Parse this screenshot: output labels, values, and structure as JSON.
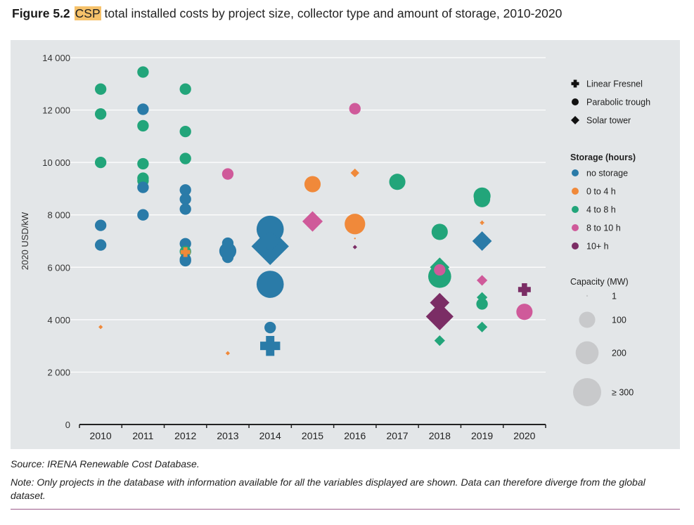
{
  "figure": {
    "number": "Figure 5.2",
    "highlight": "CSP",
    "title_rest": "total installed costs by project size, collector type and amount of storage, 2010-2020"
  },
  "source": "Source: IRENA Renewable Cost Database.",
  "note": "Note: Only projects in the database with information available for all the variables displayed are shown. Data can therefore diverge from the global dataset.",
  "chart_data": {
    "type": "scatter",
    "ylabel": "2020 USD/kW",
    "xlabel": "",
    "ylim": [
      0,
      14000
    ],
    "yticks": [
      0,
      2000,
      4000,
      6000,
      8000,
      10000,
      12000,
      14000
    ],
    "ytick_labels": [
      "0",
      "2 000",
      "4 000",
      "6 000",
      "8 000",
      "10 000",
      "12 000",
      "14 000"
    ],
    "categories": [
      "2010",
      "2011",
      "2012",
      "2013",
      "2014",
      "2015",
      "2016",
      "2017",
      "2018",
      "2019",
      "2020"
    ],
    "grid": true,
    "legend_position": "right",
    "collector_legend": [
      {
        "shape": "plus",
        "label": "Linear Fresnel"
      },
      {
        "shape": "circle",
        "label": "Parabolic trough"
      },
      {
        "shape": "diamond",
        "label": "Solar tower"
      }
    ],
    "storage_legend_title": "Storage (hours)",
    "storage_legend": [
      {
        "key": "none",
        "label": "no storage",
        "color": "#2a7ba8"
      },
      {
        "key": "0-4",
        "label": "0 to 4 h",
        "color": "#f0893a"
      },
      {
        "key": "4-8",
        "label": "4 to 8 h",
        "color": "#22a57a"
      },
      {
        "key": "8-10",
        "label": "8 to 10 h",
        "color": "#cf5a9a"
      },
      {
        "key": "10+",
        "label": "10+ h",
        "color": "#7b2d65"
      }
    ],
    "capacity_legend_title": "Capacity (MW)",
    "capacity_legend": [
      {
        "capacity": 1,
        "label": "1"
      },
      {
        "capacity": 100,
        "label": "100"
      },
      {
        "capacity": 200,
        "label": "200"
      },
      {
        "capacity": 300,
        "label": "≥ 300"
      }
    ],
    "points": [
      {
        "year": "2010",
        "y": 12800,
        "type": "trough",
        "storage": "4-8",
        "capacity": 50
      },
      {
        "year": "2010",
        "y": 11850,
        "type": "trough",
        "storage": "4-8",
        "capacity": 50
      },
      {
        "year": "2010",
        "y": 10000,
        "type": "trough",
        "storage": "4-8",
        "capacity": 50
      },
      {
        "year": "2010",
        "y": 7600,
        "type": "trough",
        "storage": "none",
        "capacity": 50
      },
      {
        "year": "2010",
        "y": 6850,
        "type": "trough",
        "storage": "none",
        "capacity": 50
      },
      {
        "year": "2010",
        "y": 3720,
        "type": "tower",
        "storage": "0-4",
        "capacity": 5
      },
      {
        "year": "2011",
        "y": 13450,
        "type": "trough",
        "storage": "4-8",
        "capacity": 50
      },
      {
        "year": "2011",
        "y": 12030,
        "type": "trough",
        "storage": "none",
        "capacity": 50
      },
      {
        "year": "2011",
        "y": 11400,
        "type": "trough",
        "storage": "4-8",
        "capacity": 50
      },
      {
        "year": "2011",
        "y": 9950,
        "type": "trough",
        "storage": "4-8",
        "capacity": 50
      },
      {
        "year": "2011",
        "y": 9400,
        "type": "trough",
        "storage": "4-8",
        "capacity": 50
      },
      {
        "year": "2011",
        "y": 9300,
        "type": "trough",
        "storage": "4-8",
        "capacity": 50
      },
      {
        "year": "2011",
        "y": 9050,
        "type": "trough",
        "storage": "none",
        "capacity": 50
      },
      {
        "year": "2011",
        "y": 8000,
        "type": "trough",
        "storage": "none",
        "capacity": 50
      },
      {
        "year": "2012",
        "y": 12800,
        "type": "trough",
        "storage": "4-8",
        "capacity": 50
      },
      {
        "year": "2012",
        "y": 11180,
        "type": "trough",
        "storage": "4-8",
        "capacity": 50
      },
      {
        "year": "2012",
        "y": 10150,
        "type": "trough",
        "storage": "4-8",
        "capacity": 50
      },
      {
        "year": "2012",
        "y": 8950,
        "type": "trough",
        "storage": "none",
        "capacity": 50
      },
      {
        "year": "2012",
        "y": 8600,
        "type": "trough",
        "storage": "none",
        "capacity": 50
      },
      {
        "year": "2012",
        "y": 8220,
        "type": "trough",
        "storage": "none",
        "capacity": 50
      },
      {
        "year": "2012",
        "y": 6900,
        "type": "trough",
        "storage": "none",
        "capacity": 50
      },
      {
        "year": "2012",
        "y": 6600,
        "type": "trough",
        "storage": "4-8",
        "capacity": 50
      },
      {
        "year": "2012",
        "y": 6300,
        "type": "trough",
        "storage": "none",
        "capacity": 50
      },
      {
        "year": "2012",
        "y": 6250,
        "type": "trough",
        "storage": "none",
        "capacity": 50
      },
      {
        "year": "2012",
        "y": 6580,
        "type": "fresnel",
        "storage": "0-4",
        "capacity": 30
      },
      {
        "year": "2013",
        "y": 9560,
        "type": "trough",
        "storage": "8-10",
        "capacity": 50
      },
      {
        "year": "2013",
        "y": 6920,
        "type": "trough",
        "storage": "none",
        "capacity": 50
      },
      {
        "year": "2013",
        "y": 6620,
        "type": "trough",
        "storage": "none",
        "capacity": 110
      },
      {
        "year": "2013",
        "y": 6380,
        "type": "trough",
        "storage": "none",
        "capacity": 50
      },
      {
        "year": "2013",
        "y": 2720,
        "type": "tower",
        "storage": "0-4",
        "capacity": 5
      },
      {
        "year": "2014",
        "y": 7450,
        "type": "trough",
        "storage": "none",
        "capacity": 280
      },
      {
        "year": "2014",
        "y": 7000,
        "type": "tower",
        "storage": "none",
        "capacity": 120
      },
      {
        "year": "2014",
        "y": 6800,
        "type": "tower",
        "storage": "none",
        "capacity": 370
      },
      {
        "year": "2014",
        "y": 5350,
        "type": "trough",
        "storage": "none",
        "capacity": 280
      },
      {
        "year": "2014",
        "y": 3700,
        "type": "trough",
        "storage": "none",
        "capacity": 50
      },
      {
        "year": "2014",
        "y": 3000,
        "type": "fresnel",
        "storage": "none",
        "capacity": 125
      },
      {
        "year": "2015",
        "y": 9170,
        "type": "trough",
        "storage": "0-4",
        "capacity": 100
      },
      {
        "year": "2015",
        "y": 7750,
        "type": "tower",
        "storage": "8-10",
        "capacity": 110
      },
      {
        "year": "2016",
        "y": 12050,
        "type": "trough",
        "storage": "8-10",
        "capacity": 50
      },
      {
        "year": "2016",
        "y": 9600,
        "type": "tower",
        "storage": "0-4",
        "capacity": 20
      },
      {
        "year": "2016",
        "y": 7650,
        "type": "trough",
        "storage": "0-4",
        "capacity": 160
      },
      {
        "year": "2016",
        "y": 7100,
        "type": "trough",
        "storage": "0-4",
        "capacity": 1
      },
      {
        "year": "2016",
        "y": 6770,
        "type": "tower",
        "storage": "10+",
        "capacity": 5
      },
      {
        "year": "2017",
        "y": 9260,
        "type": "trough",
        "storage": "4-8",
        "capacity": 100
      },
      {
        "year": "2018",
        "y": 7350,
        "type": "trough",
        "storage": "4-8",
        "capacity": 100
      },
      {
        "year": "2018",
        "y": 6000,
        "type": "tower",
        "storage": "4-8",
        "capacity": 100
      },
      {
        "year": "2018",
        "y": 5900,
        "type": "trough",
        "storage": "8-10",
        "capacity": 50
      },
      {
        "year": "2018",
        "y": 5650,
        "type": "trough",
        "storage": "4-8",
        "capacity": 200
      },
      {
        "year": "2018",
        "y": 4650,
        "type": "tower",
        "storage": "10+",
        "capacity": 100
      },
      {
        "year": "2018",
        "y": 4450,
        "type": "tower",
        "storage": "10+",
        "capacity": 20
      },
      {
        "year": "2018",
        "y": 4120,
        "type": "tower",
        "storage": "10+",
        "capacity": 200
      },
      {
        "year": "2018",
        "y": 3200,
        "type": "tower",
        "storage": "4-8",
        "capacity": 30
      },
      {
        "year": "2019",
        "y": 8720,
        "type": "trough",
        "storage": "4-8",
        "capacity": 110
      },
      {
        "year": "2019",
        "y": 8600,
        "type": "trough",
        "storage": "4-8",
        "capacity": 100
      },
      {
        "year": "2019",
        "y": 7700,
        "type": "fresnel",
        "storage": "0-4",
        "capacity": 5
      },
      {
        "year": "2019",
        "y": 7000,
        "type": "tower",
        "storage": "none",
        "capacity": 100
      },
      {
        "year": "2019",
        "y": 5500,
        "type": "tower",
        "storage": "8-10",
        "capacity": 30
      },
      {
        "year": "2019",
        "y": 4850,
        "type": "tower",
        "storage": "4-8",
        "capacity": 30
      },
      {
        "year": "2019",
        "y": 4600,
        "type": "trough",
        "storage": "4-8",
        "capacity": 50
      },
      {
        "year": "2019",
        "y": 3720,
        "type": "tower",
        "storage": "4-8",
        "capacity": 30
      },
      {
        "year": "2020",
        "y": 5150,
        "type": "fresnel",
        "storage": "10+",
        "capacity": 50
      },
      {
        "year": "2020",
        "y": 4300,
        "type": "trough",
        "storage": "8-10",
        "capacity": 100
      }
    ]
  }
}
